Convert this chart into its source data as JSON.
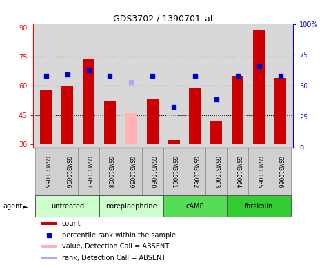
{
  "title": "GDS3702 / 1390701_at",
  "samples": [
    "GSM310055",
    "GSM310056",
    "GSM310057",
    "GSM310058",
    "GSM310059",
    "GSM310060",
    "GSM310061",
    "GSM310062",
    "GSM310063",
    "GSM310064",
    "GSM310065",
    "GSM310066"
  ],
  "bar_values": [
    58,
    60,
    74,
    52,
    46,
    53,
    32,
    59,
    42,
    65,
    89,
    64
  ],
  "bar_colors": [
    "#cc0000",
    "#cc0000",
    "#cc0000",
    "#cc0000",
    "#ffb3b3",
    "#cc0000",
    "#cc0000",
    "#cc0000",
    "#cc0000",
    "#cc0000",
    "#cc0000",
    "#cc0000"
  ],
  "dot_values": [
    65,
    66,
    68,
    65,
    62,
    65,
    49,
    65,
    53,
    65,
    70,
    65
  ],
  "dot_colors": [
    "#0000cc",
    "#0000cc",
    "#0000cc",
    "#0000cc",
    "#aaaaee",
    "#0000cc",
    "#0000cc",
    "#0000cc",
    "#0000cc",
    "#0000cc",
    "#0000cc",
    "#0000cc"
  ],
  "dot_absent": [
    false,
    false,
    false,
    false,
    true,
    false,
    false,
    false,
    false,
    false,
    false,
    false
  ],
  "group_defs": [
    {
      "label": "untreated",
      "start": 0,
      "end": 3,
      "color": "#ccffcc"
    },
    {
      "label": "norepinephrine",
      "start": 3,
      "end": 6,
      "color": "#ccffcc"
    },
    {
      "label": "cAMP",
      "start": 6,
      "end": 9,
      "color": "#55dd55"
    },
    {
      "label": "forskolin",
      "start": 9,
      "end": 12,
      "color": "#33cc33"
    }
  ],
  "ylim_left": [
    28,
    92
  ],
  "ylim_right": [
    0,
    100
  ],
  "yticks_left": [
    30,
    45,
    60,
    75,
    90
  ],
  "yticks_right": [
    0,
    25,
    50,
    75,
    100
  ],
  "ytick_labels_right": [
    "0",
    "25",
    "50",
    "75",
    "100%"
  ],
  "hlines": [
    45,
    60,
    75
  ],
  "bar_base": 30,
  "bar_width": 0.55,
  "plot_bg": "#d8d8d8",
  "legend_items": [
    {
      "color": "#cc0000",
      "type": "patch",
      "label": "count"
    },
    {
      "color": "#0000cc",
      "type": "marker",
      "label": "percentile rank within the sample"
    },
    {
      "color": "#ffb3b3",
      "type": "patch",
      "label": "value, Detection Call = ABSENT"
    },
    {
      "color": "#aaaaee",
      "type": "patch",
      "label": "rank, Detection Call = ABSENT"
    }
  ]
}
